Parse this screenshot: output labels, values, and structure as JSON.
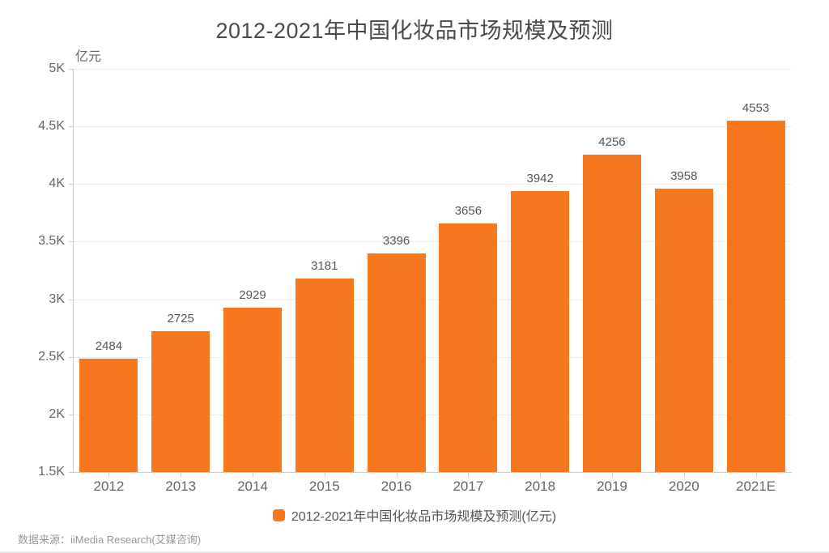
{
  "title": "2012-2021年中国化妆品市场规模及预测",
  "y_axis_unit": "亿元",
  "legend": {
    "label": "2012-2021年中国化妆品市场规模及预测(亿元)"
  },
  "source": "数据来源：iiMedia Research(艾媒咨询)",
  "colors": {
    "bar": "#F8781F",
    "title_text": "#4a4a4a",
    "axis_text": "#666666",
    "value_text": "#555555",
    "grid_line": "#ececec",
    "axis_line": "#cccccc",
    "source_text": "#999999"
  },
  "chart_data": {
    "type": "bar",
    "title": "2012-2021年中国化妆品市场规模及预测",
    "categories": [
      "2012",
      "2013",
      "2014",
      "2015",
      "2016",
      "2017",
      "2018",
      "2019",
      "2020",
      "2021E"
    ],
    "values": [
      2484,
      2725,
      2929,
      3181,
      3396,
      3656,
      3942,
      4256,
      3958,
      4553
    ],
    "series_name": "2012-2021年中国化妆品市场规模及预测(亿元)",
    "xlabel": "",
    "ylabel": "亿元",
    "ylim": [
      1500,
      5000
    ],
    "y_tick_step": 500,
    "y_tick_labels_top_to_bottom": [
      "5K",
      "4.5K",
      "4K",
      "3.5K",
      "3K",
      "2.5K",
      "2K",
      "1.5K"
    ],
    "grid": true,
    "legend_position": "bottom",
    "data_labels": true
  }
}
